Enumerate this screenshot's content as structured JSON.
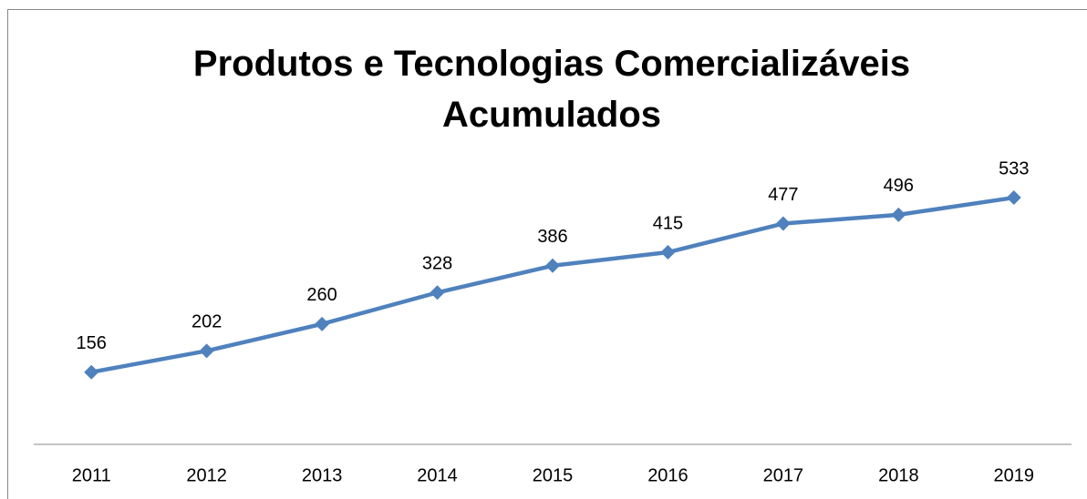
{
  "chart_data": {
    "type": "line",
    "title": "Produtos e Tecnologias Comercializáveis Acumulados",
    "categories": [
      "2011",
      "2012",
      "2013",
      "2014",
      "2015",
      "2016",
      "2017",
      "2018",
      "2019"
    ],
    "series": [
      {
        "color": "#4f81bd",
        "values": [
          156,
          202,
          260,
          328,
          386,
          415,
          477,
          496,
          533
        ]
      }
    ],
    "ylim": [
      0,
      600
    ]
  }
}
